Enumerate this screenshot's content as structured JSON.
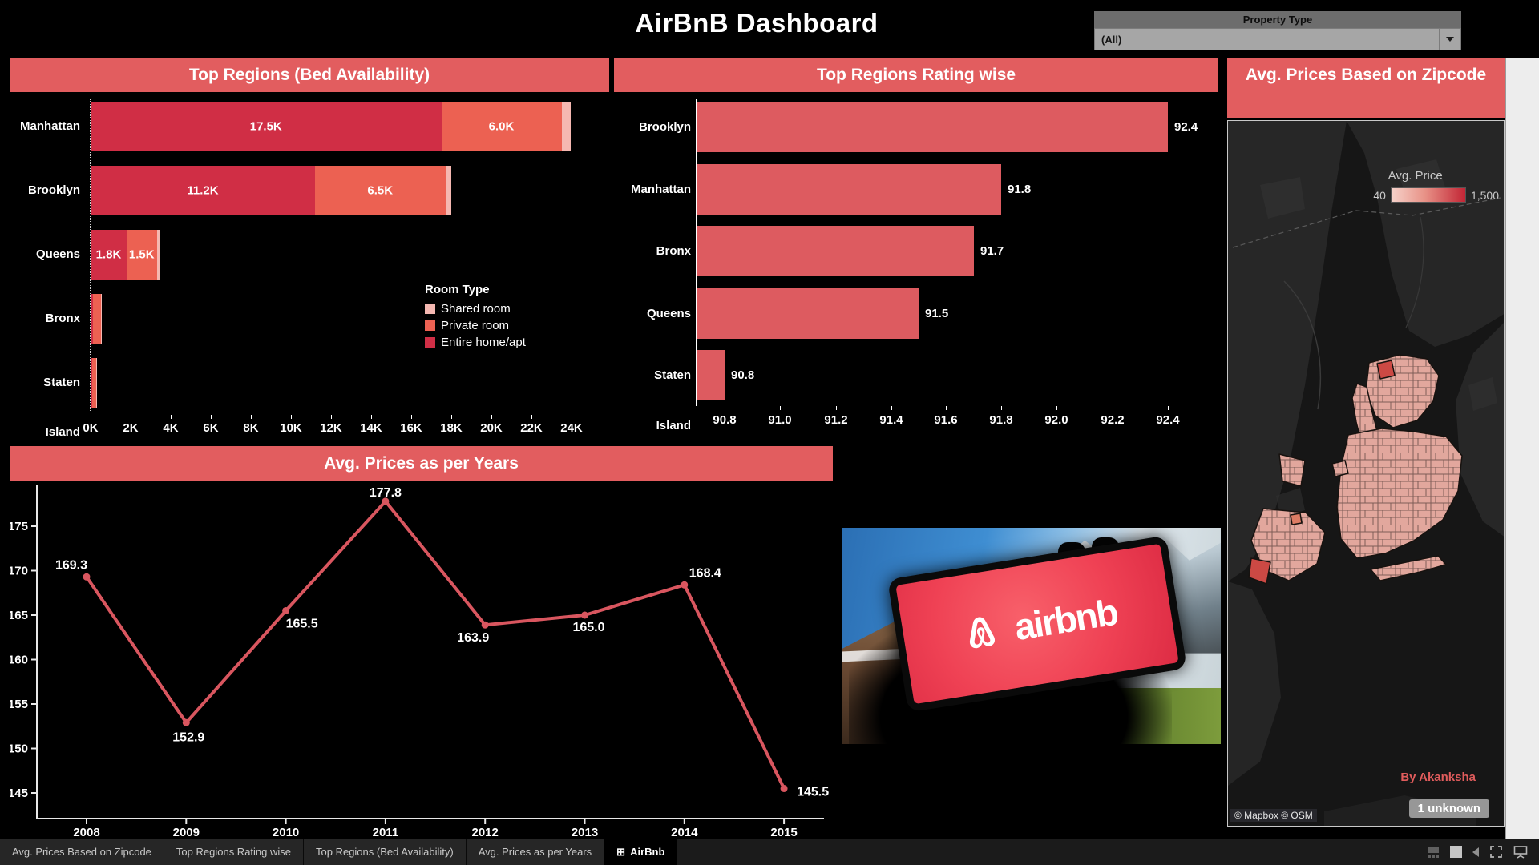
{
  "header": {
    "title": "AirBnB Dashboard"
  },
  "filter": {
    "label": "Property Type",
    "value": "(All)"
  },
  "colors": {
    "banner": "#e25d5f",
    "rating_bar": "#dd5b60",
    "line": "#d9565f",
    "entire_home": "#d02e45",
    "private_room": "#ec6152",
    "shared_room": "#f5b8b1",
    "map_min_color": "#f6d2ca",
    "map_max_color": "#c22535",
    "credit_text": "#e05c5c"
  },
  "chart_data": [
    {
      "id": "beds",
      "type": "bar",
      "stacked": true,
      "orientation": "horizontal",
      "title": "Top Regions (Bed Availability)",
      "categories": [
        "Manhattan",
        "Brooklyn",
        "Queens",
        "Bronx",
        "Staten Island"
      ],
      "series": [
        {
          "name": "Entire home/apt",
          "color": "#d02e45",
          "values": [
            17.5,
            11.2,
            1.8,
            0.12,
            0.08
          ],
          "labels": [
            "17.5K",
            "11.2K",
            "1.8K",
            "",
            ""
          ]
        },
        {
          "name": "Private room",
          "color": "#ec6152",
          "values": [
            6.0,
            6.5,
            1.5,
            0.38,
            0.18
          ],
          "labels": [
            "6.0K",
            "6.5K",
            "1.5K",
            "",
            ""
          ]
        },
        {
          "name": "Shared room",
          "color": "#f5b8b1",
          "values": [
            0.45,
            0.3,
            0.12,
            0.04,
            0.04
          ],
          "labels": [
            "",
            "",
            "",
            "",
            ""
          ]
        }
      ],
      "legend_title": "Room Type",
      "legend_order": [
        "Shared room",
        "Private room",
        "Entire home/apt"
      ],
      "x_ticks": [
        "0K",
        "2K",
        "4K",
        "6K",
        "8K",
        "10K",
        "12K",
        "14K",
        "16K",
        "18K",
        "20K",
        "22K",
        "24K"
      ],
      "xlim": [
        0,
        24
      ],
      "x_unit": "thousand beds"
    },
    {
      "id": "ratings",
      "type": "bar",
      "orientation": "horizontal",
      "title": "Top Regions Rating wise",
      "categories": [
        "Brooklyn",
        "Manhattan",
        "Bronx",
        "Queens",
        "Staten Island"
      ],
      "values": [
        92.4,
        91.8,
        91.7,
        91.5,
        90.8
      ],
      "labels": [
        "92.4",
        "91.8",
        "91.7",
        "91.5",
        "90.8"
      ],
      "x_ticks": [
        "90.8",
        "91.0",
        "91.2",
        "91.4",
        "91.6",
        "91.8",
        "92.0",
        "92.2",
        "92.4"
      ],
      "xlim": [
        90.7,
        92.55
      ]
    },
    {
      "id": "years",
      "type": "line",
      "title": "Avg. Prices as per Years",
      "x": [
        "2008",
        "2009",
        "2010",
        "2011",
        "2012",
        "2013",
        "2014",
        "2015"
      ],
      "values": [
        169.3,
        152.9,
        165.5,
        177.8,
        163.9,
        165.0,
        168.4,
        145.5
      ],
      "labels": [
        "169.3",
        "152.9",
        "165.5",
        "177.8",
        "163.9",
        "165.0",
        "168.4",
        "145.5"
      ],
      "y_ticks": [
        145,
        150,
        155,
        160,
        165,
        170,
        175
      ],
      "ylim": [
        142,
        179
      ],
      "grid": false,
      "legend": "none"
    },
    {
      "id": "zipmap",
      "type": "heatmap",
      "subtype": "choropleth-map",
      "title": "Avg. Prices Based on Zipcode",
      "legend_title": "Avg. Price",
      "legend_min": "40",
      "legend_max": "1,500",
      "attribution": "© Mapbox © OSM",
      "credit": "By Akanksha",
      "badge": "1 unknown"
    }
  ],
  "photo": {
    "logo_text": "airbnb"
  },
  "tabs": [
    {
      "label": "Avg. Prices Based on Zipcode",
      "active": false
    },
    {
      "label": "Top Regions Rating wise",
      "active": false
    },
    {
      "label": "Top Regions (Bed Availability)",
      "active": false
    },
    {
      "label": "Avg. Prices as per Years",
      "active": false
    },
    {
      "label": "AirBnb",
      "active": true
    }
  ],
  "statusbar_icons": [
    "data-grid-icon",
    "sheet-icon",
    "previous-sheet-icon",
    "fullscreen-icon",
    "presentation-mode-icon"
  ]
}
